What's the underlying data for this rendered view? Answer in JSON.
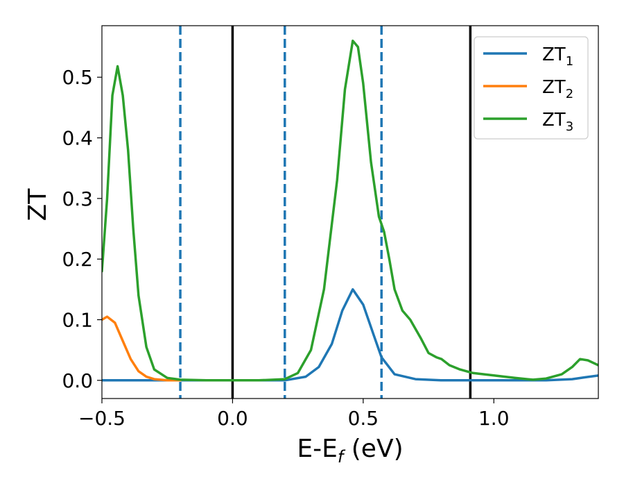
{
  "chart_data": {
    "type": "line",
    "xlabel": {
      "main": "E-E",
      "sub": "f",
      "rest": " (eV)"
    },
    "ylabel": "ZT",
    "xlim": [
      -0.5,
      1.4
    ],
    "ylim": [
      -0.03,
      0.585
    ],
    "xticks": [
      -0.5,
      0.0,
      0.5,
      1.0
    ],
    "xtick_labels": [
      "−0.5",
      "0.0",
      "0.5",
      "1.0"
    ],
    "yticks": [
      0.0,
      0.1,
      0.2,
      0.3,
      0.4,
      0.5
    ],
    "ytick_labels": [
      "0.0",
      "0.1",
      "0.2",
      "0.3",
      "0.4",
      "0.5"
    ],
    "legend_position": "top-right",
    "vlines": [
      {
        "x": -0.2,
        "style": "dashed",
        "color": "#1f77b4"
      },
      {
        "x": 0.0,
        "style": "solid",
        "color": "#000000"
      },
      {
        "x": 0.2,
        "style": "dashed",
        "color": "#1f77b4"
      },
      {
        "x": 0.57,
        "style": "dashed",
        "color": "#1f77b4"
      },
      {
        "x": 0.91,
        "style": "solid",
        "color": "#000000"
      }
    ],
    "series": [
      {
        "name": "ZT",
        "sub": "1",
        "color": "#1f77b4",
        "points": [
          [
            -0.5,
            0.0
          ],
          [
            0.2,
            0.0
          ],
          [
            0.28,
            0.006
          ],
          [
            0.33,
            0.022
          ],
          [
            0.38,
            0.06
          ],
          [
            0.42,
            0.115
          ],
          [
            0.46,
            0.15
          ],
          [
            0.5,
            0.125
          ],
          [
            0.54,
            0.075
          ],
          [
            0.57,
            0.038
          ],
          [
            0.62,
            0.01
          ],
          [
            0.7,
            0.002
          ],
          [
            0.8,
            0.0
          ],
          [
            1.0,
            0.0
          ],
          [
            1.2,
            0.0
          ],
          [
            1.3,
            0.002
          ],
          [
            1.35,
            0.005
          ],
          [
            1.4,
            0.008
          ]
        ]
      },
      {
        "name": "ZT",
        "sub": "2",
        "color": "#ff7f0e",
        "points": [
          [
            -0.5,
            0.1
          ],
          [
            -0.48,
            0.105
          ],
          [
            -0.45,
            0.095
          ],
          [
            -0.42,
            0.065
          ],
          [
            -0.39,
            0.035
          ],
          [
            -0.36,
            0.015
          ],
          [
            -0.33,
            0.006
          ],
          [
            -0.3,
            0.002
          ],
          [
            -0.25,
            0.0
          ],
          [
            -0.2,
            0.0
          ]
        ]
      },
      {
        "name": "ZT",
        "sub": "3",
        "color": "#2ca02c",
        "points": [
          [
            -0.5,
            0.18
          ],
          [
            -0.48,
            0.3
          ],
          [
            -0.46,
            0.47
          ],
          [
            -0.44,
            0.518
          ],
          [
            -0.42,
            0.47
          ],
          [
            -0.4,
            0.38
          ],
          [
            -0.38,
            0.25
          ],
          [
            -0.36,
            0.14
          ],
          [
            -0.33,
            0.055
          ],
          [
            -0.3,
            0.018
          ],
          [
            -0.25,
            0.004
          ],
          [
            -0.2,
            0.001
          ],
          [
            -0.1,
            0.0
          ],
          [
            0.1,
            0.0
          ],
          [
            0.2,
            0.002
          ],
          [
            0.25,
            0.012
          ],
          [
            0.3,
            0.05
          ],
          [
            0.35,
            0.15
          ],
          [
            0.4,
            0.33
          ],
          [
            0.43,
            0.48
          ],
          [
            0.46,
            0.56
          ],
          [
            0.48,
            0.55
          ],
          [
            0.5,
            0.49
          ],
          [
            0.53,
            0.36
          ],
          [
            0.56,
            0.27
          ],
          [
            0.58,
            0.245
          ],
          [
            0.6,
            0.2
          ],
          [
            0.62,
            0.15
          ],
          [
            0.65,
            0.115
          ],
          [
            0.68,
            0.1
          ],
          [
            0.72,
            0.07
          ],
          [
            0.75,
            0.045
          ],
          [
            0.78,
            0.038
          ],
          [
            0.8,
            0.035
          ],
          [
            0.83,
            0.025
          ],
          [
            0.87,
            0.018
          ],
          [
            0.92,
            0.012
          ],
          [
            1.0,
            0.008
          ],
          [
            1.08,
            0.004
          ],
          [
            1.15,
            0.001
          ],
          [
            1.2,
            0.003
          ],
          [
            1.26,
            0.01
          ],
          [
            1.3,
            0.022
          ],
          [
            1.33,
            0.035
          ],
          [
            1.36,
            0.033
          ],
          [
            1.4,
            0.025
          ]
        ]
      }
    ]
  }
}
